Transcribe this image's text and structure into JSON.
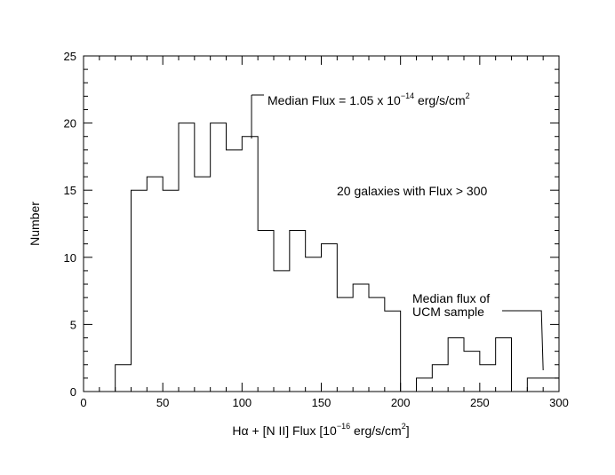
{
  "chart_data": {
    "type": "bar",
    "bin_edges": [
      0,
      10,
      20,
      30,
      40,
      50,
      60,
      70,
      80,
      90,
      100,
      110,
      120,
      130,
      140,
      150,
      160,
      170,
      180,
      190,
      200,
      210,
      220,
      230,
      240,
      250,
      260,
      270,
      280,
      290,
      300
    ],
    "values": [
      0,
      0,
      2,
      15,
      16,
      15,
      20,
      16,
      20,
      18,
      19,
      12,
      9,
      12,
      10,
      11,
      7,
      8,
      7,
      6,
      0,
      1,
      2,
      4,
      3,
      2,
      4,
      0,
      1,
      1
    ],
    "xlabel": {
      "prefix": "Hα + [N II] Flux [10",
      "exp": "−16",
      "suffix": " erg/s/cm",
      "sup2": "2",
      "close": "]"
    },
    "ylabel": "Number",
    "xlim": [
      0,
      300
    ],
    "ylim": [
      0,
      25
    ],
    "xticks": [
      "0",
      "50",
      "100",
      "150",
      "200",
      "250",
      "300"
    ],
    "yticks": [
      "0",
      "5",
      "10",
      "15",
      "20",
      "25"
    ],
    "grid": false,
    "annotations": {
      "median_flux": {
        "prefix": "Median Flux = 1.05 x 10",
        "exp": "−14",
        "suffix": " erg/s/cm",
        "sup2": "2",
        "x": 106
      },
      "galaxies_note": "20 galaxies with Flux > 300",
      "ucm_line1": "Median flux of",
      "ucm_line2": "UCM sample",
      "ucm_x": 290
    }
  }
}
